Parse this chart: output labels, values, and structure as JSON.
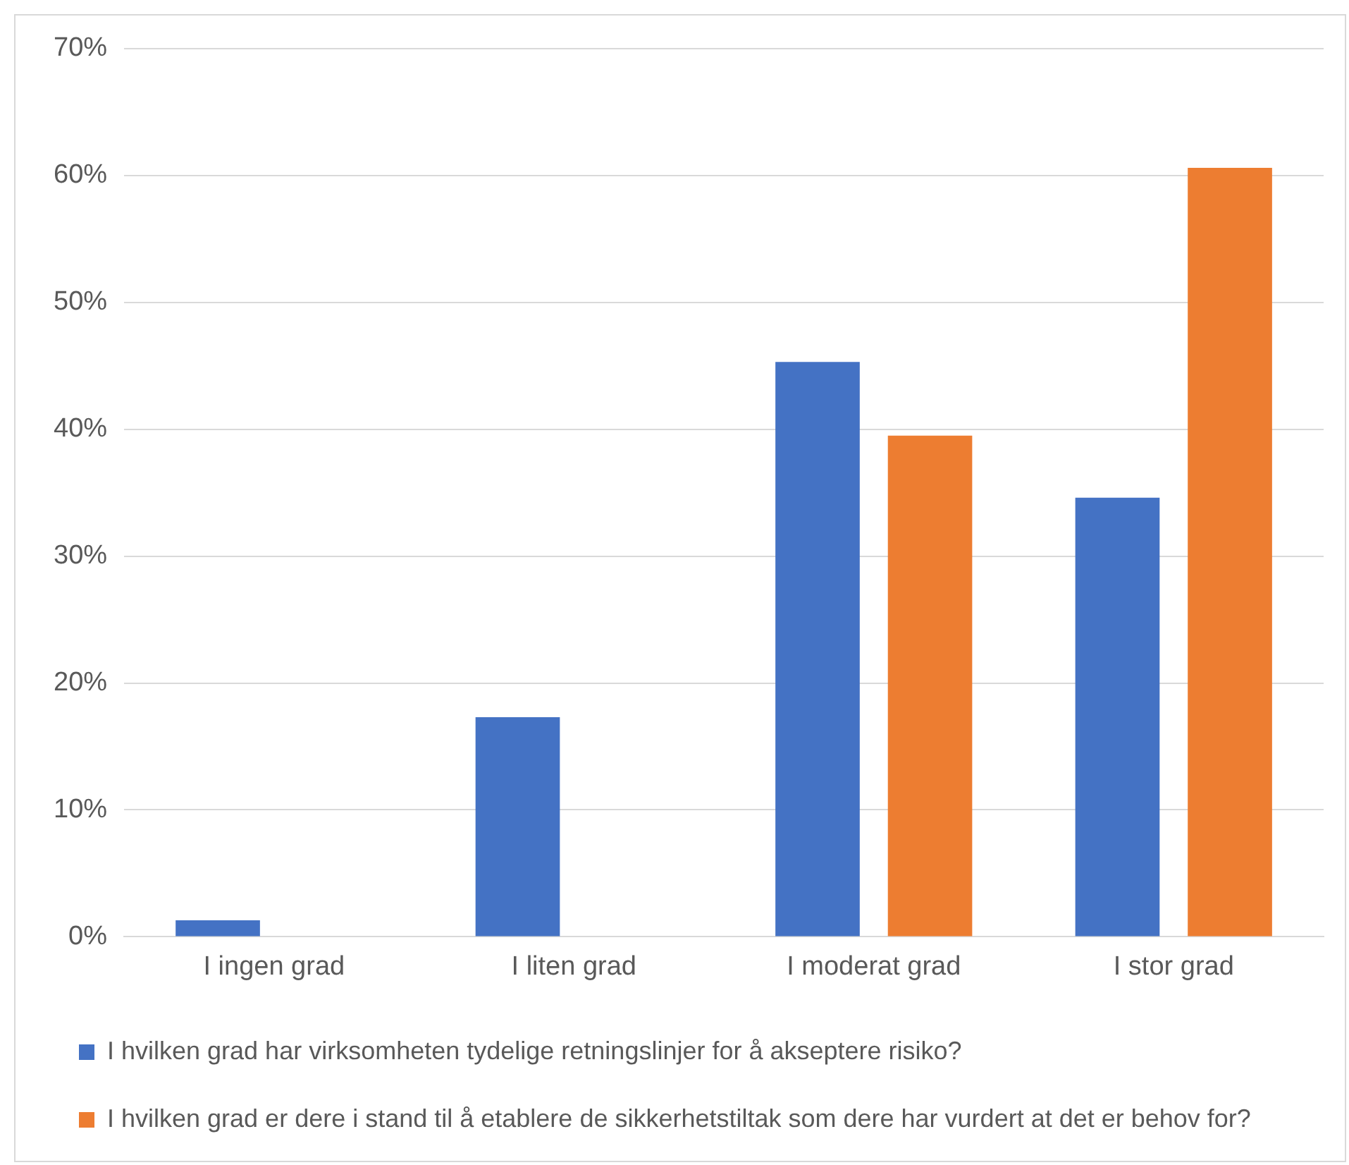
{
  "chart_data": {
    "type": "bar",
    "categories": [
      "I ingen grad",
      "I liten grad",
      "I moderat grad",
      "I stor grad"
    ],
    "series": [
      {
        "name": "I hvilken grad har virksomheten tydelige retningslinjer for å akseptere risiko?",
        "color": "#4472c4",
        "values": [
          1.3,
          17.3,
          45.3,
          34.6
        ]
      },
      {
        "name": "I hvilken grad er dere i stand til å etablere de sikkerhetstiltak som dere har vurdert at det er behov for?",
        "color": "#ed7d31",
        "values": [
          0,
          0,
          39.5,
          60.6
        ]
      }
    ],
    "ylim": [
      0,
      70
    ],
    "yticks": [
      {
        "value": 0,
        "label": "0%"
      },
      {
        "value": 10,
        "label": "10%"
      },
      {
        "value": 20,
        "label": "20%"
      },
      {
        "value": 30,
        "label": "30%"
      },
      {
        "value": 40,
        "label": "40%"
      },
      {
        "value": 50,
        "label": "50%"
      },
      {
        "value": 60,
        "label": "60%"
      },
      {
        "value": 70,
        "label": "70%"
      }
    ],
    "grid": "y",
    "legend": "bottom"
  }
}
